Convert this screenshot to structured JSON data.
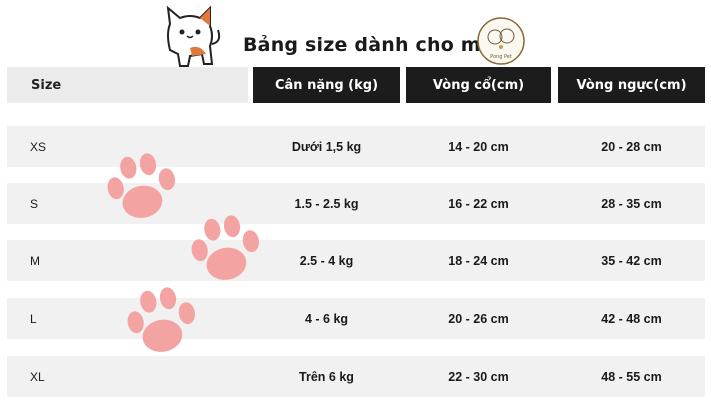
{
  "title": "Bảng size dành cho mèo",
  "logo_text": "Pong Pet",
  "colors": {
    "header_bg": "#1c1c1c",
    "row_bg": "#f1f1f1",
    "paw": "#f4a3a3",
    "cat_patch": "#e07a3c"
  },
  "table": {
    "headers": [
      "Size",
      "Cân nặng (kg)",
      "Vòng cổ(cm)",
      "Vòng ngực(cm)"
    ],
    "rows": [
      [
        "XS",
        "Dưới 1,5 kg",
        "14 - 20 cm",
        "20 - 28 cm"
      ],
      [
        "S",
        "1.5 - 2.5 kg",
        "16 - 22 cm",
        "28 - 35 cm"
      ],
      [
        "M",
        "2.5 - 4 kg",
        "18 - 24 cm",
        "35 - 42 cm"
      ],
      [
        "L",
        "4 - 6 kg",
        "20 - 26 cm",
        "42 - 48 cm"
      ],
      [
        "XL",
        "Trên 6 kg",
        "22 - 30 cm",
        "48 - 55 cm"
      ]
    ]
  }
}
